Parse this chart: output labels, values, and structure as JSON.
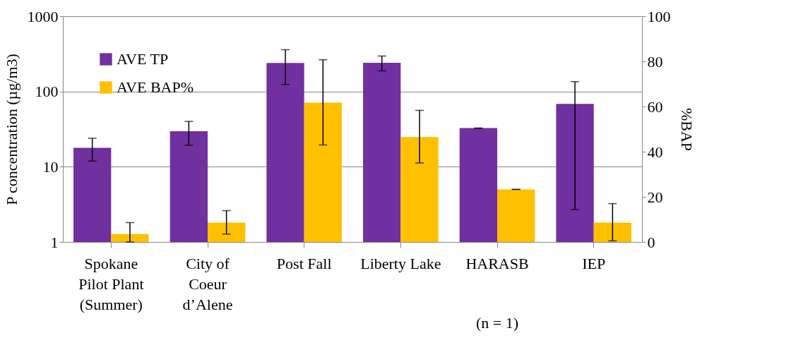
{
  "chart_data": {
    "type": "bar",
    "ylabel": "P concentration (µg/m3)",
    "y2label": "%BAP",
    "categories": [
      "Spokane\nPilot Plant\n(Summer)",
      "City of\nCoeur\nd’Alene",
      "Post Fall",
      "Liberty Lake",
      "HARASB",
      "IEP"
    ],
    "series": [
      {
        "name": "AVE TP",
        "color": "#7030a0",
        "values": [
          17.8,
          29.7,
          239,
          240,
          32.6,
          68.5
        ],
        "errors": [
          [
            11.9,
            23.9
          ],
          [
            19.3,
            40
          ],
          [
            124,
            359
          ],
          [
            188,
            296
          ],
          0,
          [
            2.7,
            135
          ]
        ]
      },
      {
        "name": "AVE BAP%",
        "color": "#ffc000",
        "axis": "y2",
        "values": [
          3.5,
          8.6,
          61.7,
          46.5,
          23.3,
          8.6
        ],
        "errors": [
          [
            0,
            8.6
          ],
          [
            3.5,
            13.9
          ],
          [
            43,
            80.7
          ],
          [
            35,
            58.3
          ],
          0,
          [
            0.5,
            17
          ]
        ]
      }
    ],
    "log": "y",
    "ylim": [
      1,
      1000
    ],
    "yticks": [
      1,
      10,
      100,
      1000
    ],
    "y2lim": [
      0,
      100
    ],
    "y2ticks": [
      0,
      20,
      40,
      60,
      80,
      100
    ],
    "grid": "y",
    "legend": "top left",
    "annotations": [
      "(n = 1)"
    ]
  }
}
